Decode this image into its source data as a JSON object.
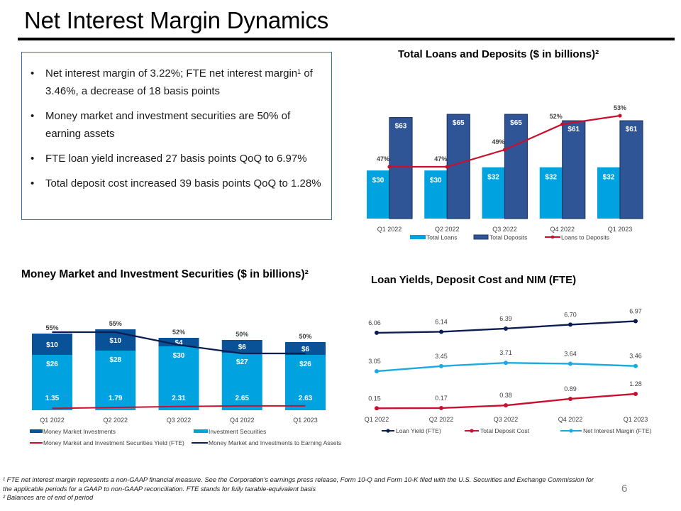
{
  "slide": {
    "title": "Net Interest Margin Dynamics",
    "page_number": "6"
  },
  "bullets": [
    {
      "text": "Net interest margin of 3.22%; FTE net interest margin",
      "sup": "1",
      "text_after": " of 3.46%, a decrease of 18 basis points"
    },
    {
      "text": "Money market and investment securities are 50% of earning assets",
      "sup": "",
      "text_after": ""
    },
    {
      "text": "FTE loan yield increased 27 basis points QoQ to 6.97%",
      "sup": "",
      "text_after": ""
    },
    {
      "text": "Total deposit cost increased 39 basis points QoQ to 1.28%",
      "sup": "",
      "text_after": ""
    }
  ],
  "footnotes": {
    "note1": "¹ FTE net interest margin represents a non-GAAP financial measure. See the Corporation's earnings press release, Form 10-Q and Form 10-K filed with the U.S. Securities and Exchange Commission for the applicable periods for a GAAP to non-GAAP reconciliation. FTE stands for fully taxable-equivalent basis",
    "note2": "² Balances are of end of period"
  },
  "colors": {
    "light_blue": "#00A3E0",
    "deposit_blue": "#2F5597",
    "deposit_border": "#1F3864",
    "money_market_blue": "#0A5298",
    "red": "#C8102E",
    "navy": "#0B1D51",
    "nim_blue": "#1BA9E0",
    "box_border": "#2E75B6"
  },
  "chart_data": [
    {
      "type": "bar",
      "title": "Total Loans and Deposits ($ in billions)²",
      "categories": [
        "Q1 2022",
        "Q2 2022",
        "Q3 2022",
        "Q4 2022",
        "Q1 2023"
      ],
      "series": [
        {
          "name": "Total Loans",
          "kind": "bar",
          "values": [
            30,
            30,
            32,
            32,
            32
          ],
          "label_prefix": "$",
          "label_suffix": ""
        },
        {
          "name": "Total Deposits",
          "kind": "bar",
          "values": [
            63,
            65,
            65,
            61,
            61
          ],
          "label_prefix": "$",
          "label_suffix": ""
        },
        {
          "name": "Loans to Deposits",
          "kind": "line",
          "axis": "secondary",
          "values": [
            47,
            47,
            49,
            52,
            53
          ],
          "label_prefix": "",
          "label_suffix": "%"
        }
      ],
      "xlabel": "",
      "ylabel": "",
      "ylim": [
        0,
        70
      ],
      "grid": false,
      "legend": "bottom"
    },
    {
      "type": "bar",
      "stacked": true,
      "title": "Money Market and Investment Securities ($ in billions)²",
      "categories": [
        "Q1 2022",
        "Q2 2022",
        "Q3 2022",
        "Q4 2022",
        "Q1 2023"
      ],
      "series": [
        {
          "name": "Money Market Investments",
          "kind": "bar",
          "values": [
            10,
            10,
            4,
            6,
            6
          ],
          "label_prefix": "$",
          "label_suffix": ""
        },
        {
          "name": "Investment Securities",
          "kind": "bar",
          "values": [
            26,
            28,
            30,
            27,
            26
          ],
          "label_prefix": "$",
          "label_suffix": ""
        },
        {
          "name": "Money Market and Investment Securities Yield (FTE)",
          "kind": "line",
          "axis": "secondary",
          "values": [
            1.35,
            1.79,
            2.31,
            2.65,
            2.63
          ],
          "label_prefix": "",
          "label_suffix": ""
        },
        {
          "name": "Money Market and Investments to Earning Assets",
          "kind": "line",
          "axis": "secondary",
          "values": [
            55,
            55,
            52,
            50,
            50
          ],
          "label_prefix": "",
          "label_suffix": "%"
        }
      ],
      "xlabel": "",
      "ylabel": "",
      "ylim": [
        0,
        40
      ],
      "grid": false,
      "legend": "bottom"
    },
    {
      "type": "line",
      "title": "Loan Yields, Deposit Cost and NIM (FTE)",
      "categories": [
        "Q1 2022",
        "Q2 2022",
        "Q3 2022",
        "Q4 2022",
        "Q1 2023"
      ],
      "series": [
        {
          "name": "Loan Yield (FTE)",
          "values": [
            6.06,
            6.14,
            6.39,
            6.7,
            6.97
          ]
        },
        {
          "name": "Total Deposit Cost",
          "values": [
            0.15,
            0.17,
            0.38,
            0.89,
            1.28
          ]
        },
        {
          "name": "Net Interest Margin (FTE)",
          "values": [
            3.05,
            3.45,
            3.71,
            3.64,
            3.46
          ]
        }
      ],
      "xlabel": "",
      "ylabel": "",
      "ylim": [
        0,
        8
      ],
      "grid": false,
      "legend": "bottom"
    }
  ]
}
